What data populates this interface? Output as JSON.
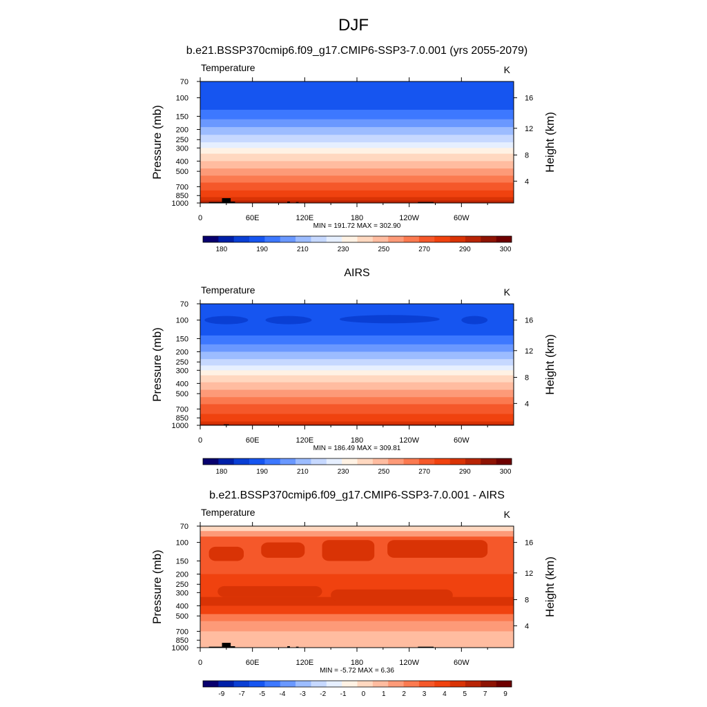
{
  "figure": {
    "title": "DJF",
    "accent_black": "#000000"
  },
  "chart_data": [
    {
      "type": "heatmap",
      "title": "b.e21.BSSP370cmip6.f09_g17.CMIP6-SSP3-7.0.001 (yrs 2055-2079)",
      "left_label": "Temperature",
      "units": "K",
      "ylabel": "Pressure (mb)",
      "ylabel_right": "Height (km)",
      "xticks": [
        "0",
        "60E",
        "120E",
        "180",
        "120W",
        "60W"
      ],
      "yticks": [
        "70",
        "100",
        "150",
        "200",
        "250",
        "300",
        "400",
        "500",
        "700",
        "850",
        "1000"
      ],
      "yticks_right": [
        "16",
        "12",
        "8",
        "4"
      ],
      "stats": "MIN = 191.72  MAX = 302.90",
      "min": 191.72,
      "max": 302.9,
      "colorbar": {
        "labels": [
          "180",
          "190",
          "210",
          "230",
          "250",
          "270",
          "290",
          "300"
        ],
        "colors": [
          "#08006e",
          "#0020a8",
          "#0a3fd4",
          "#1655f0",
          "#3d78ff",
          "#6a98ff",
          "#9cbcff",
          "#c6d8ff",
          "#e6efff",
          "#fff2e4",
          "#ffd8c0",
          "#ffbca0",
          "#fd9a78",
          "#fb7a50",
          "#f5582a",
          "#f0420f",
          "#d93305",
          "#b82405",
          "#8e1303",
          "#6e0000"
        ]
      },
      "bands": [
        {
          "level": 70,
          "color": "#1655f0"
        },
        {
          "level": 130,
          "color": "#3d78ff"
        },
        {
          "level": 160,
          "color": "#6a98ff"
        },
        {
          "level": 190,
          "color": "#9cbcff"
        },
        {
          "level": 225,
          "color": "#c6d8ff"
        },
        {
          "level": 265,
          "color": "#e6efff"
        },
        {
          "level": 300,
          "color": "#fff2e4"
        },
        {
          "level": 340,
          "color": "#ffd8c0"
        },
        {
          "level": 400,
          "color": "#ffbca0"
        },
        {
          "level": 470,
          "color": "#fd9a78"
        },
        {
          "level": 550,
          "color": "#fb7a50"
        },
        {
          "level": 640,
          "color": "#f5582a"
        },
        {
          "level": 760,
          "color": "#f0420f"
        },
        {
          "level": 880,
          "color": "#d93305"
        },
        {
          "level": 950,
          "color": "#b82405"
        }
      ],
      "terrain": [
        [
          10,
          25,
          980
        ],
        [
          25,
          35,
          900
        ],
        [
          35,
          40,
          970
        ],
        [
          100,
          103,
          970
        ],
        [
          110,
          113,
          980
        ],
        [
          250,
          268,
          980
        ]
      ]
    },
    {
      "type": "heatmap",
      "title": "AIRS",
      "left_label": "Temperature",
      "units": "K",
      "ylabel": "Pressure (mb)",
      "ylabel_right": "Height (km)",
      "xticks": [
        "0",
        "60E",
        "120E",
        "180",
        "120W",
        "60W"
      ],
      "yticks": [
        "70",
        "100",
        "150",
        "200",
        "250",
        "300",
        "400",
        "500",
        "700",
        "850",
        "1000"
      ],
      "yticks_right": [
        "16",
        "12",
        "8",
        "4"
      ],
      "stats": "MIN = 186.49  MAX = 309.81",
      "min": 186.49,
      "max": 309.81,
      "colorbar": {
        "labels": [
          "180",
          "190",
          "210",
          "230",
          "250",
          "270",
          "290",
          "300"
        ],
        "colors": [
          "#08006e",
          "#0020a8",
          "#0a3fd4",
          "#1655f0",
          "#3d78ff",
          "#6a98ff",
          "#9cbcff",
          "#c6d8ff",
          "#e6efff",
          "#fff2e4",
          "#ffd8c0",
          "#ffbca0",
          "#fd9a78",
          "#fb7a50",
          "#f5582a",
          "#f0420f",
          "#d93305",
          "#b82405",
          "#8e1303",
          "#6e0000"
        ]
      },
      "bands": [
        {
          "level": 70,
          "color": "#1655f0"
        },
        {
          "level": 140,
          "color": "#3d78ff"
        },
        {
          "level": 170,
          "color": "#6a98ff"
        },
        {
          "level": 200,
          "color": "#9cbcff"
        },
        {
          "level": 235,
          "color": "#c6d8ff"
        },
        {
          "level": 270,
          "color": "#e6efff"
        },
        {
          "level": 300,
          "color": "#fff2e4"
        },
        {
          "level": 335,
          "color": "#ffd8c0"
        },
        {
          "level": 390,
          "color": "#ffbca0"
        },
        {
          "level": 460,
          "color": "#fd9a78"
        },
        {
          "level": 540,
          "color": "#fb7a50"
        },
        {
          "level": 630,
          "color": "#f5582a"
        },
        {
          "level": 780,
          "color": "#f0420f"
        },
        {
          "level": 920,
          "color": "#d93305"
        },
        {
          "level": 970,
          "color": "#b82405"
        }
      ],
      "cold_patches": [
        [
          5,
          55,
          100
        ],
        [
          75,
          128,
          100
        ],
        [
          160,
          275,
          98
        ],
        [
          300,
          330,
          100
        ]
      ],
      "terrain": [
        [
          27,
          33,
          980
        ]
      ]
    },
    {
      "type": "heatmap",
      "title": "b.e21.BSSP370cmip6.f09_g17.CMIP6-SSP3-7.0.001 - AIRS",
      "left_label": "Temperature",
      "units": "K",
      "ylabel": "Pressure (mb)",
      "ylabel_right": "Height (km)",
      "xticks": [
        "0",
        "60E",
        "120E",
        "180",
        "120W",
        "60W"
      ],
      "yticks": [
        "70",
        "100",
        "150",
        "200",
        "250",
        "300",
        "400",
        "500",
        "700",
        "850",
        "1000"
      ],
      "yticks_right": [
        "16",
        "12",
        "8",
        "4"
      ],
      "stats": "MIN =  -5.72  MAX =   6.36",
      "min": -5.72,
      "max": 6.36,
      "colorbar": {
        "labels": [
          "-9",
          "-7",
          "-5",
          "-4",
          "-3",
          "-2",
          "-1",
          "0",
          "1",
          "2",
          "3",
          "4",
          "5",
          "7",
          "9"
        ],
        "colors": [
          "#08006e",
          "#0020a8",
          "#0a3fd4",
          "#1655f0",
          "#3d78ff",
          "#6a98ff",
          "#9cbcff",
          "#c6d8ff",
          "#e6efff",
          "#fff2e4",
          "#ffd8c0",
          "#ffbca0",
          "#fd9a78",
          "#fb7a50",
          "#f5582a",
          "#f0420f",
          "#d93305",
          "#b82405",
          "#8e1303",
          "#6e0000"
        ]
      },
      "bands": [
        {
          "level": 70,
          "color": "#ffd8c0"
        },
        {
          "level": 78,
          "color": "#fd9a78"
        },
        {
          "level": 88,
          "color": "#f5582a"
        },
        {
          "level": 200,
          "color": "#f0420f"
        },
        {
          "level": 330,
          "color": "#d93305"
        },
        {
          "level": 400,
          "color": "#f0420f"
        },
        {
          "level": 480,
          "color": "#fb7a50"
        },
        {
          "level": 560,
          "color": "#fd9a78"
        },
        {
          "level": 700,
          "color": "#ffbca0"
        }
      ],
      "warm_patches": [
        [
          10,
          50,
          110,
          150
        ],
        [
          70,
          120,
          100,
          140
        ],
        [
          140,
          200,
          95,
          150
        ],
        [
          215,
          330,
          95,
          140
        ],
        [
          20,
          140,
          260,
          330
        ],
        [
          150,
          290,
          280,
          360
        ]
      ],
      "terrain": [
        [
          10,
          25,
          980
        ],
        [
          25,
          35,
          900
        ],
        [
          35,
          40,
          970
        ],
        [
          100,
          103,
          970
        ],
        [
          110,
          113,
          980
        ],
        [
          250,
          268,
          980
        ]
      ]
    }
  ]
}
